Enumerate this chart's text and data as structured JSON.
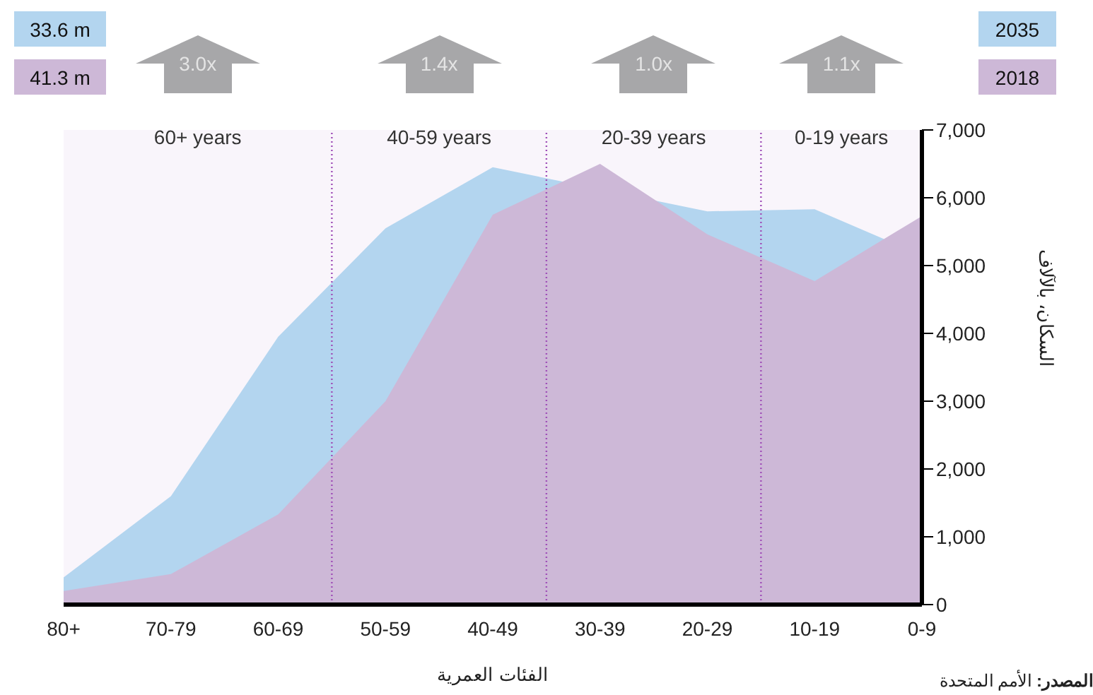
{
  "chart_data": {
    "type": "area",
    "categories": [
      "80+",
      "70-79",
      "60-69",
      "50-59",
      "40-49",
      "30-39",
      "20-29",
      "10-19",
      "0-9"
    ],
    "series": [
      {
        "name": "2035",
        "color": "#b3d5ef",
        "values": [
          400,
          1600,
          3950,
          5550,
          6450,
          null,
          5800,
          5830,
          5150
        ]
      },
      {
        "name": "2018",
        "color": "#cdb8d7",
        "values": [
          200,
          450,
          1330,
          3000,
          5750,
          6500,
          5460,
          4770,
          5730
        ]
      }
    ],
    "ylim": [
      0,
      7000
    ],
    "yticks": [
      {
        "value": 0,
        "label": "0"
      },
      {
        "value": 1000,
        "label": "1,000"
      },
      {
        "value": 2000,
        "label": "2,000"
      },
      {
        "value": 3000,
        "label": "3,000"
      },
      {
        "value": 4000,
        "label": "4,000"
      },
      {
        "value": 5000,
        "label": "5,000"
      },
      {
        "value": 6000,
        "label": "6,000"
      },
      {
        "value": 7000,
        "label": "7,000"
      }
    ],
    "xlabel": "الفئات العمرية",
    "ylabel": "السكان، بالآلاف",
    "bands": [
      {
        "axis": "x",
        "from": "80+",
        "to": "60-69",
        "label": "60+ years",
        "color": "#a050b8"
      },
      {
        "axis": "x",
        "from": "50-59",
        "to": "40-49",
        "label": "40-59 years",
        "color": "#a050b8"
      },
      {
        "axis": "x",
        "from": "30-39",
        "to": "20-29",
        "label": "20-39 years",
        "color": "#a050b8"
      },
      {
        "axis": "x",
        "from": "10-19",
        "to": "0-9",
        "label": "0-19 years",
        "color": "#a050b8"
      }
    ],
    "annotations": [
      "33.6 m",
      "41.3 m",
      "3.0x",
      "1.4x",
      "1.0x",
      "1.1x",
      "المصدر: الأمم المتحدة"
    ],
    "legend": "top right",
    "grid": false
  }
}
